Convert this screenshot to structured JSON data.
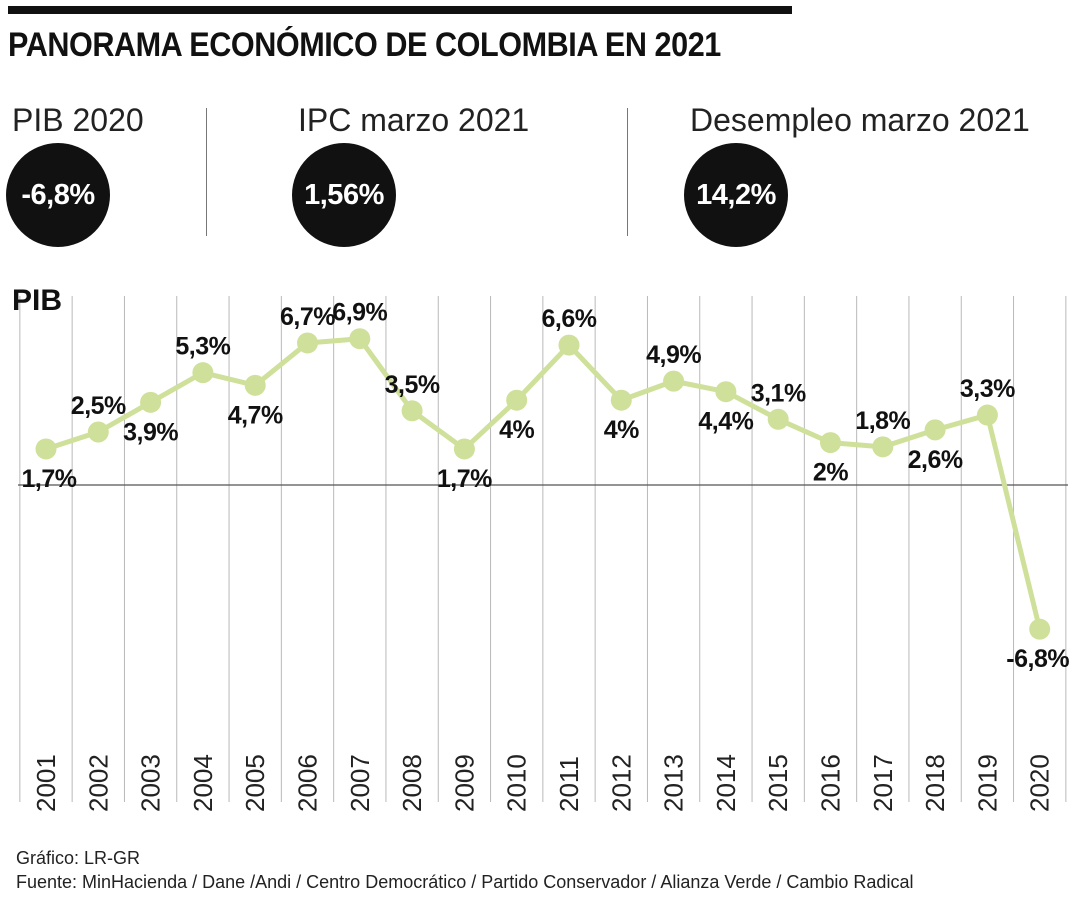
{
  "header": {
    "title": "PANORAMA ECONÓMICO DE COLOMBIA EN 2021"
  },
  "kpis": [
    {
      "label": "PIB 2020",
      "value": "-6,8%"
    },
    {
      "label": "IPC marzo 2021",
      "value": "1,56%"
    },
    {
      "label": "Desempleo marzo 2021",
      "value": "14,2%"
    }
  ],
  "colors": {
    "line": "#cfe09a",
    "grid": "#b9b9b9",
    "baseline": "#555555",
    "text": "#111111",
    "circle": "#111111"
  },
  "chart_data": {
    "type": "line",
    "title": "PIB",
    "xlabel": "",
    "ylabel": "",
    "grid": true,
    "ylim": [
      -9,
      9
    ],
    "categories": [
      "2001",
      "2002",
      "2003",
      "2004",
      "2005",
      "2006",
      "2007",
      "2008",
      "2009",
      "2010",
      "2011",
      "2012",
      "2013",
      "2014",
      "2015",
      "2016",
      "2017",
      "2018",
      "2019",
      "2020"
    ],
    "values": [
      1.7,
      2.5,
      3.9,
      5.3,
      4.7,
      6.7,
      6.9,
      3.5,
      1.7,
      4.0,
      6.6,
      4.0,
      4.9,
      4.4,
      3.1,
      2.0,
      1.8,
      2.6,
      3.3,
      -6.8
    ],
    "labels": [
      "1,7%",
      "2,5%",
      "3,9%",
      "5,3%",
      "4,7%",
      "6,7%",
      "6,9%",
      "3,5%",
      "1,7%",
      "4%",
      "6,6%",
      "4%",
      "4,9%",
      "4,4%",
      "3,1%",
      "2%",
      "1,8%",
      "2,6%",
      "3,3%",
      "-6,8%"
    ],
    "label_positions": [
      "below",
      "above",
      "below",
      "above",
      "below",
      "above",
      "above",
      "above",
      "below",
      "below",
      "above",
      "below",
      "above",
      "below",
      "above",
      "below",
      "above",
      "below",
      "above",
      "below"
    ]
  },
  "footer": {
    "credit": "Gráfico: LR-GR",
    "source": "Fuente: MinHacienda / Dane /Andi / Centro Democrático / Partido Conservador / Alianza Verde / Cambio Radical"
  }
}
